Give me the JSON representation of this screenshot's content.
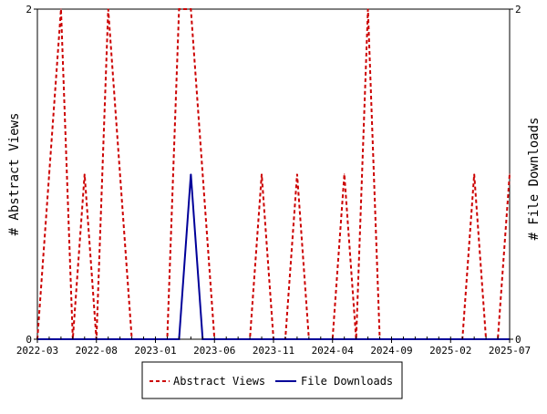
{
  "chart_data": {
    "type": "line",
    "x": [
      "2022-03",
      "2022-04",
      "2022-05",
      "2022-06",
      "2022-07",
      "2022-08",
      "2022-09",
      "2022-10",
      "2022-11",
      "2022-12",
      "2023-01",
      "2023-02",
      "2023-03",
      "2023-04",
      "2023-05",
      "2023-06",
      "2023-07",
      "2023-08",
      "2023-09",
      "2023-10",
      "2023-11",
      "2023-12",
      "2024-01",
      "2024-02",
      "2024-03",
      "2024-04",
      "2024-05",
      "2024-06",
      "2024-07",
      "2024-08",
      "2024-09",
      "2024-10",
      "2024-11",
      "2024-12",
      "2025-01",
      "2025-02",
      "2025-03",
      "2025-04",
      "2025-05",
      "2025-06",
      "2025-07"
    ],
    "series": [
      {
        "name": "Abstract Views",
        "axis": "left",
        "color": "#cc0000",
        "dash": "dashed",
        "values": [
          0,
          1,
          2,
          0,
          1,
          0,
          2,
          1,
          0,
          0,
          0,
          0,
          2,
          2,
          1,
          0,
          0,
          0,
          0,
          1,
          0,
          0,
          1,
          0,
          0,
          0,
          1,
          0,
          2,
          0,
          0,
          0,
          0,
          0,
          0,
          0,
          0,
          1,
          0,
          0,
          1
        ]
      },
      {
        "name": "File Downloads",
        "axis": "right",
        "color": "#000099",
        "dash": "solid",
        "values": [
          0,
          0,
          0,
          0,
          0,
          0,
          0,
          0,
          0,
          0,
          0,
          0,
          0,
          1,
          0,
          0,
          0,
          0,
          0,
          0,
          0,
          0,
          0,
          0,
          0,
          0,
          0,
          0,
          0,
          0,
          0,
          0,
          0,
          0,
          0,
          0,
          0,
          0,
          0,
          0,
          0
        ]
      }
    ],
    "xticks": [
      "2022-03",
      "2022-08",
      "2023-01",
      "2023-06",
      "2023-11",
      "2024-04",
      "2024-09",
      "2025-02",
      "2025-07"
    ],
    "ylabel_left": "# Abstract Views",
    "ylabel_right": "# File Downloads",
    "ylim_left": [
      0,
      2
    ],
    "ylim_right": [
      0,
      2
    ],
    "yticks_left": [
      "0",
      "2"
    ],
    "yticks_right": [
      "0",
      "2"
    ],
    "grid": false,
    "legend_position": "bottom"
  }
}
